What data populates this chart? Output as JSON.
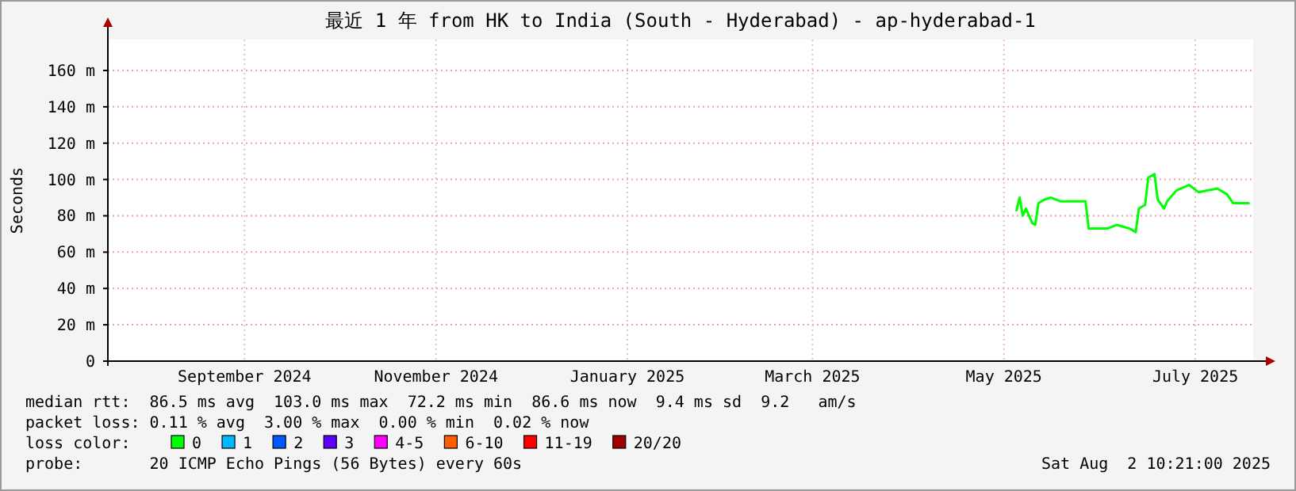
{
  "chart_data": {
    "type": "line",
    "title": "最近 1 年 from HK to India (South - Hyderabad) - ap-hyderabad-1",
    "ylabel": "Seconds",
    "x": [
      "2025-05-19",
      "2025-05-20",
      "2025-05-21",
      "2025-05-22",
      "2025-05-24",
      "2025-05-25",
      "2025-05-26",
      "2025-05-28",
      "2025-05-30",
      "2025-06-02",
      "2025-06-10",
      "2025-06-11",
      "2025-06-17",
      "2025-06-20",
      "2025-06-24",
      "2025-06-26",
      "2025-06-27",
      "2025-06-29",
      "2025-06-30",
      "2025-07-02",
      "2025-07-03",
      "2025-07-05",
      "2025-07-06",
      "2025-07-09",
      "2025-07-13",
      "2025-07-16",
      "2025-07-22",
      "2025-07-25",
      "2025-07-27",
      "2025-07-30",
      "2025-08-01"
    ],
    "series": [
      {
        "name": "0",
        "color": "#00ff00",
        "values": [
          83,
          90,
          80,
          84,
          76,
          75,
          87,
          89,
          90,
          88,
          88,
          73,
          73,
          75,
          73,
          71,
          84,
          86,
          101,
          103,
          89,
          84,
          88,
          94,
          97,
          93,
          95,
          92,
          87,
          87,
          87
        ]
      },
      {
        "name": "1",
        "color": "#00b8ff",
        "values": [
          null,
          null,
          null,
          null,
          null,
          null,
          null,
          null,
          null,
          null,
          null,
          null,
          null,
          null,
          null,
          null,
          null,
          null,
          null,
          null,
          null,
          null,
          null,
          null,
          null,
          null,
          null,
          null,
          null,
          null,
          null
        ]
      },
      {
        "name": "2",
        "color": "#0059ff",
        "values": [
          null,
          null,
          null,
          null,
          null,
          null,
          null,
          null,
          null,
          null,
          null,
          null,
          null,
          null,
          null,
          null,
          null,
          null,
          null,
          null,
          null,
          null,
          null,
          null,
          null,
          null,
          null,
          null,
          null,
          null,
          null
        ]
      },
      {
        "name": "3",
        "color": "#5e00ff",
        "values": [
          null,
          null,
          null,
          null,
          null,
          null,
          null,
          null,
          null,
          null,
          null,
          null,
          null,
          null,
          null,
          null,
          null,
          null,
          null,
          null,
          null,
          null,
          null,
          null,
          null,
          null,
          null,
          null,
          null,
          null,
          null
        ]
      },
      {
        "name": "4-5",
        "color": "#ff00ff",
        "values": [
          null,
          null,
          null,
          null,
          null,
          null,
          null,
          null,
          null,
          null,
          null,
          null,
          null,
          null,
          null,
          null,
          null,
          null,
          null,
          null,
          null,
          null,
          null,
          null,
          null,
          null,
          null,
          null,
          null,
          null,
          null
        ]
      },
      {
        "name": "6-10",
        "color": "#ff5e00",
        "values": [
          null,
          null,
          null,
          null,
          null,
          null,
          null,
          null,
          null,
          null,
          null,
          null,
          null,
          null,
          null,
          null,
          null,
          null,
          null,
          null,
          null,
          null,
          null,
          null,
          null,
          null,
          null,
          null,
          null,
          null,
          null
        ]
      },
      {
        "name": "11-19",
        "color": "#ff0000",
        "values": [
          null,
          null,
          null,
          null,
          null,
          null,
          null,
          null,
          null,
          null,
          null,
          null,
          null,
          null,
          null,
          null,
          null,
          null,
          null,
          null,
          null,
          null,
          null,
          null,
          null,
          null,
          null,
          null,
          null,
          null,
          null
        ]
      },
      {
        "name": "20/20",
        "color": "#a10000",
        "values": [
          null,
          null,
          null,
          null,
          null,
          null,
          null,
          null,
          null,
          null,
          null,
          null,
          null,
          null,
          null,
          null,
          null,
          null,
          null,
          null,
          null,
          null,
          null,
          null,
          null,
          null,
          null,
          null,
          null,
          null,
          null
        ]
      }
    ],
    "legend_title": "loss color:",
    "legend": "bottom",
    "grid": true,
    "xlim": [
      "2024-08-02T10:21",
      "2025-08-02T10:21"
    ],
    "xticks": [
      {
        "value": "2024-09-15",
        "label": "September 2024"
      },
      {
        "value": "2024-11-15",
        "label": "November 2024"
      },
      {
        "value": "2025-01-15",
        "label": "January 2025"
      },
      {
        "value": "2025-03-15",
        "label": "March 2025"
      },
      {
        "value": "2025-05-15",
        "label": "May 2025"
      },
      {
        "value": "2025-07-15",
        "label": "July 2025"
      }
    ],
    "ylim": [
      0,
      177
    ],
    "yticks": [
      0,
      {
        "value": 20,
        "label": "20 m"
      },
      {
        "value": 40,
        "label": "40 m"
      },
      {
        "value": 60,
        "label": "60 m"
      },
      {
        "value": 80,
        "label": "80 m"
      },
      {
        "value": 100,
        "label": "100 m"
      },
      {
        "value": 120,
        "label": "120 m"
      },
      {
        "value": 140,
        "label": "140 m"
      },
      {
        "value": 160,
        "label": "160 m"
      }
    ],
    "annotations": [
      "median rtt:  86.5 ms avg  103.0 ms max  72.2 ms min  86.6 ms now  9.4 ms sd  9.2   am/s",
      "packet loss: 0.11 % avg  3.00 % max  0.00 % min  0.02 % now",
      "probe:       20 ICMP Echo Pings (56 Bytes) every 60s",
      "Sat Aug  2 10:21:00 2025"
    ]
  }
}
